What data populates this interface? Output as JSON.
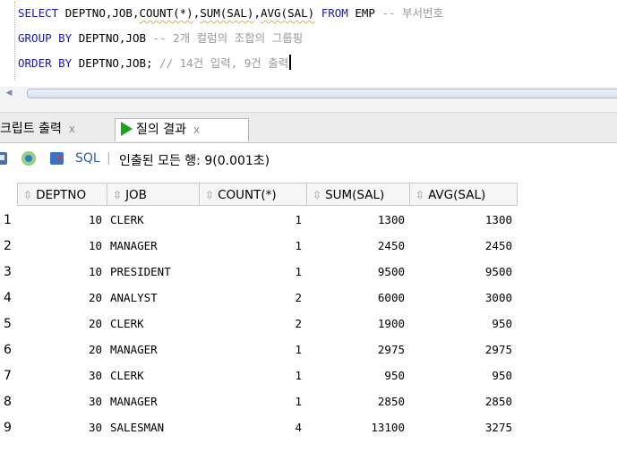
{
  "editor": {
    "lines": [
      {
        "segments": [
          {
            "cls": "kw",
            "text": "SELECT "
          },
          {
            "cls": "tx",
            "text": "DEPTNO,JOB,"
          },
          {
            "cls": "tx sq",
            "text": "COUNT(*)"
          },
          {
            "cls": "tx",
            "text": ","
          },
          {
            "cls": "tx sq",
            "text": "SUM(SAL)"
          },
          {
            "cls": "tx",
            "text": ","
          },
          {
            "cls": "tx sq",
            "text": "AVG(SAL)"
          },
          {
            "cls": "tx",
            "text": " "
          },
          {
            "cls": "kw",
            "text": "FROM "
          },
          {
            "cls": "tx",
            "text": "EMP "
          },
          {
            "cls": "cm",
            "text": "-- 부서번호"
          }
        ]
      },
      {
        "segments": [
          {
            "cls": "kw",
            "text": "GROUP BY "
          },
          {
            "cls": "tx",
            "text": "DEPTNO,JOB "
          },
          {
            "cls": "cm",
            "text": "-- 2개 컬럼의 조합의 그룹핑"
          }
        ]
      },
      {
        "segments": [
          {
            "cls": "kw",
            "text": "ORDER BY "
          },
          {
            "cls": "tx",
            "text": "DEPTNO,JOB; "
          },
          {
            "cls": "cm",
            "text": "// 14건 입력, 9건 출력"
          }
        ]
      }
    ]
  },
  "tabs": {
    "script_output": {
      "label": "크립트 출력",
      "close": "x"
    },
    "query_result": {
      "label": "질의 결과",
      "close": "x"
    }
  },
  "toolbar": {
    "sql_label": "SQL",
    "separator": "|",
    "status": "인출된 모든 행: 9(0.001초)"
  },
  "grid": {
    "sort_icon": "⇳",
    "columns": [
      "DEPTNO",
      "JOB",
      "COUNT(*)",
      "SUM(SAL)",
      "AVG(SAL)"
    ],
    "rows": [
      {
        "n": "1",
        "deptno": "10",
        "job": "CLERK",
        "count": "1",
        "sum": "1300",
        "avg": "1300"
      },
      {
        "n": "2",
        "deptno": "10",
        "job": "MANAGER",
        "count": "1",
        "sum": "2450",
        "avg": "2450"
      },
      {
        "n": "3",
        "deptno": "10",
        "job": "PRESIDENT",
        "count": "1",
        "sum": "9500",
        "avg": "9500"
      },
      {
        "n": "4",
        "deptno": "20",
        "job": "ANALYST",
        "count": "2",
        "sum": "6000",
        "avg": "3000"
      },
      {
        "n": "5",
        "deptno": "20",
        "job": "CLERK",
        "count": "2",
        "sum": "1900",
        "avg": "950"
      },
      {
        "n": "6",
        "deptno": "20",
        "job": "MANAGER",
        "count": "1",
        "sum": "2975",
        "avg": "2975"
      },
      {
        "n": "7",
        "deptno": "30",
        "job": "CLERK",
        "count": "1",
        "sum": "950",
        "avg": "950"
      },
      {
        "n": "8",
        "deptno": "30",
        "job": "MANAGER",
        "count": "1",
        "sum": "2850",
        "avg": "2850"
      },
      {
        "n": "9",
        "deptno": "30",
        "job": "SALESMAN",
        "count": "4",
        "sum": "13100",
        "avg": "3275"
      }
    ]
  }
}
